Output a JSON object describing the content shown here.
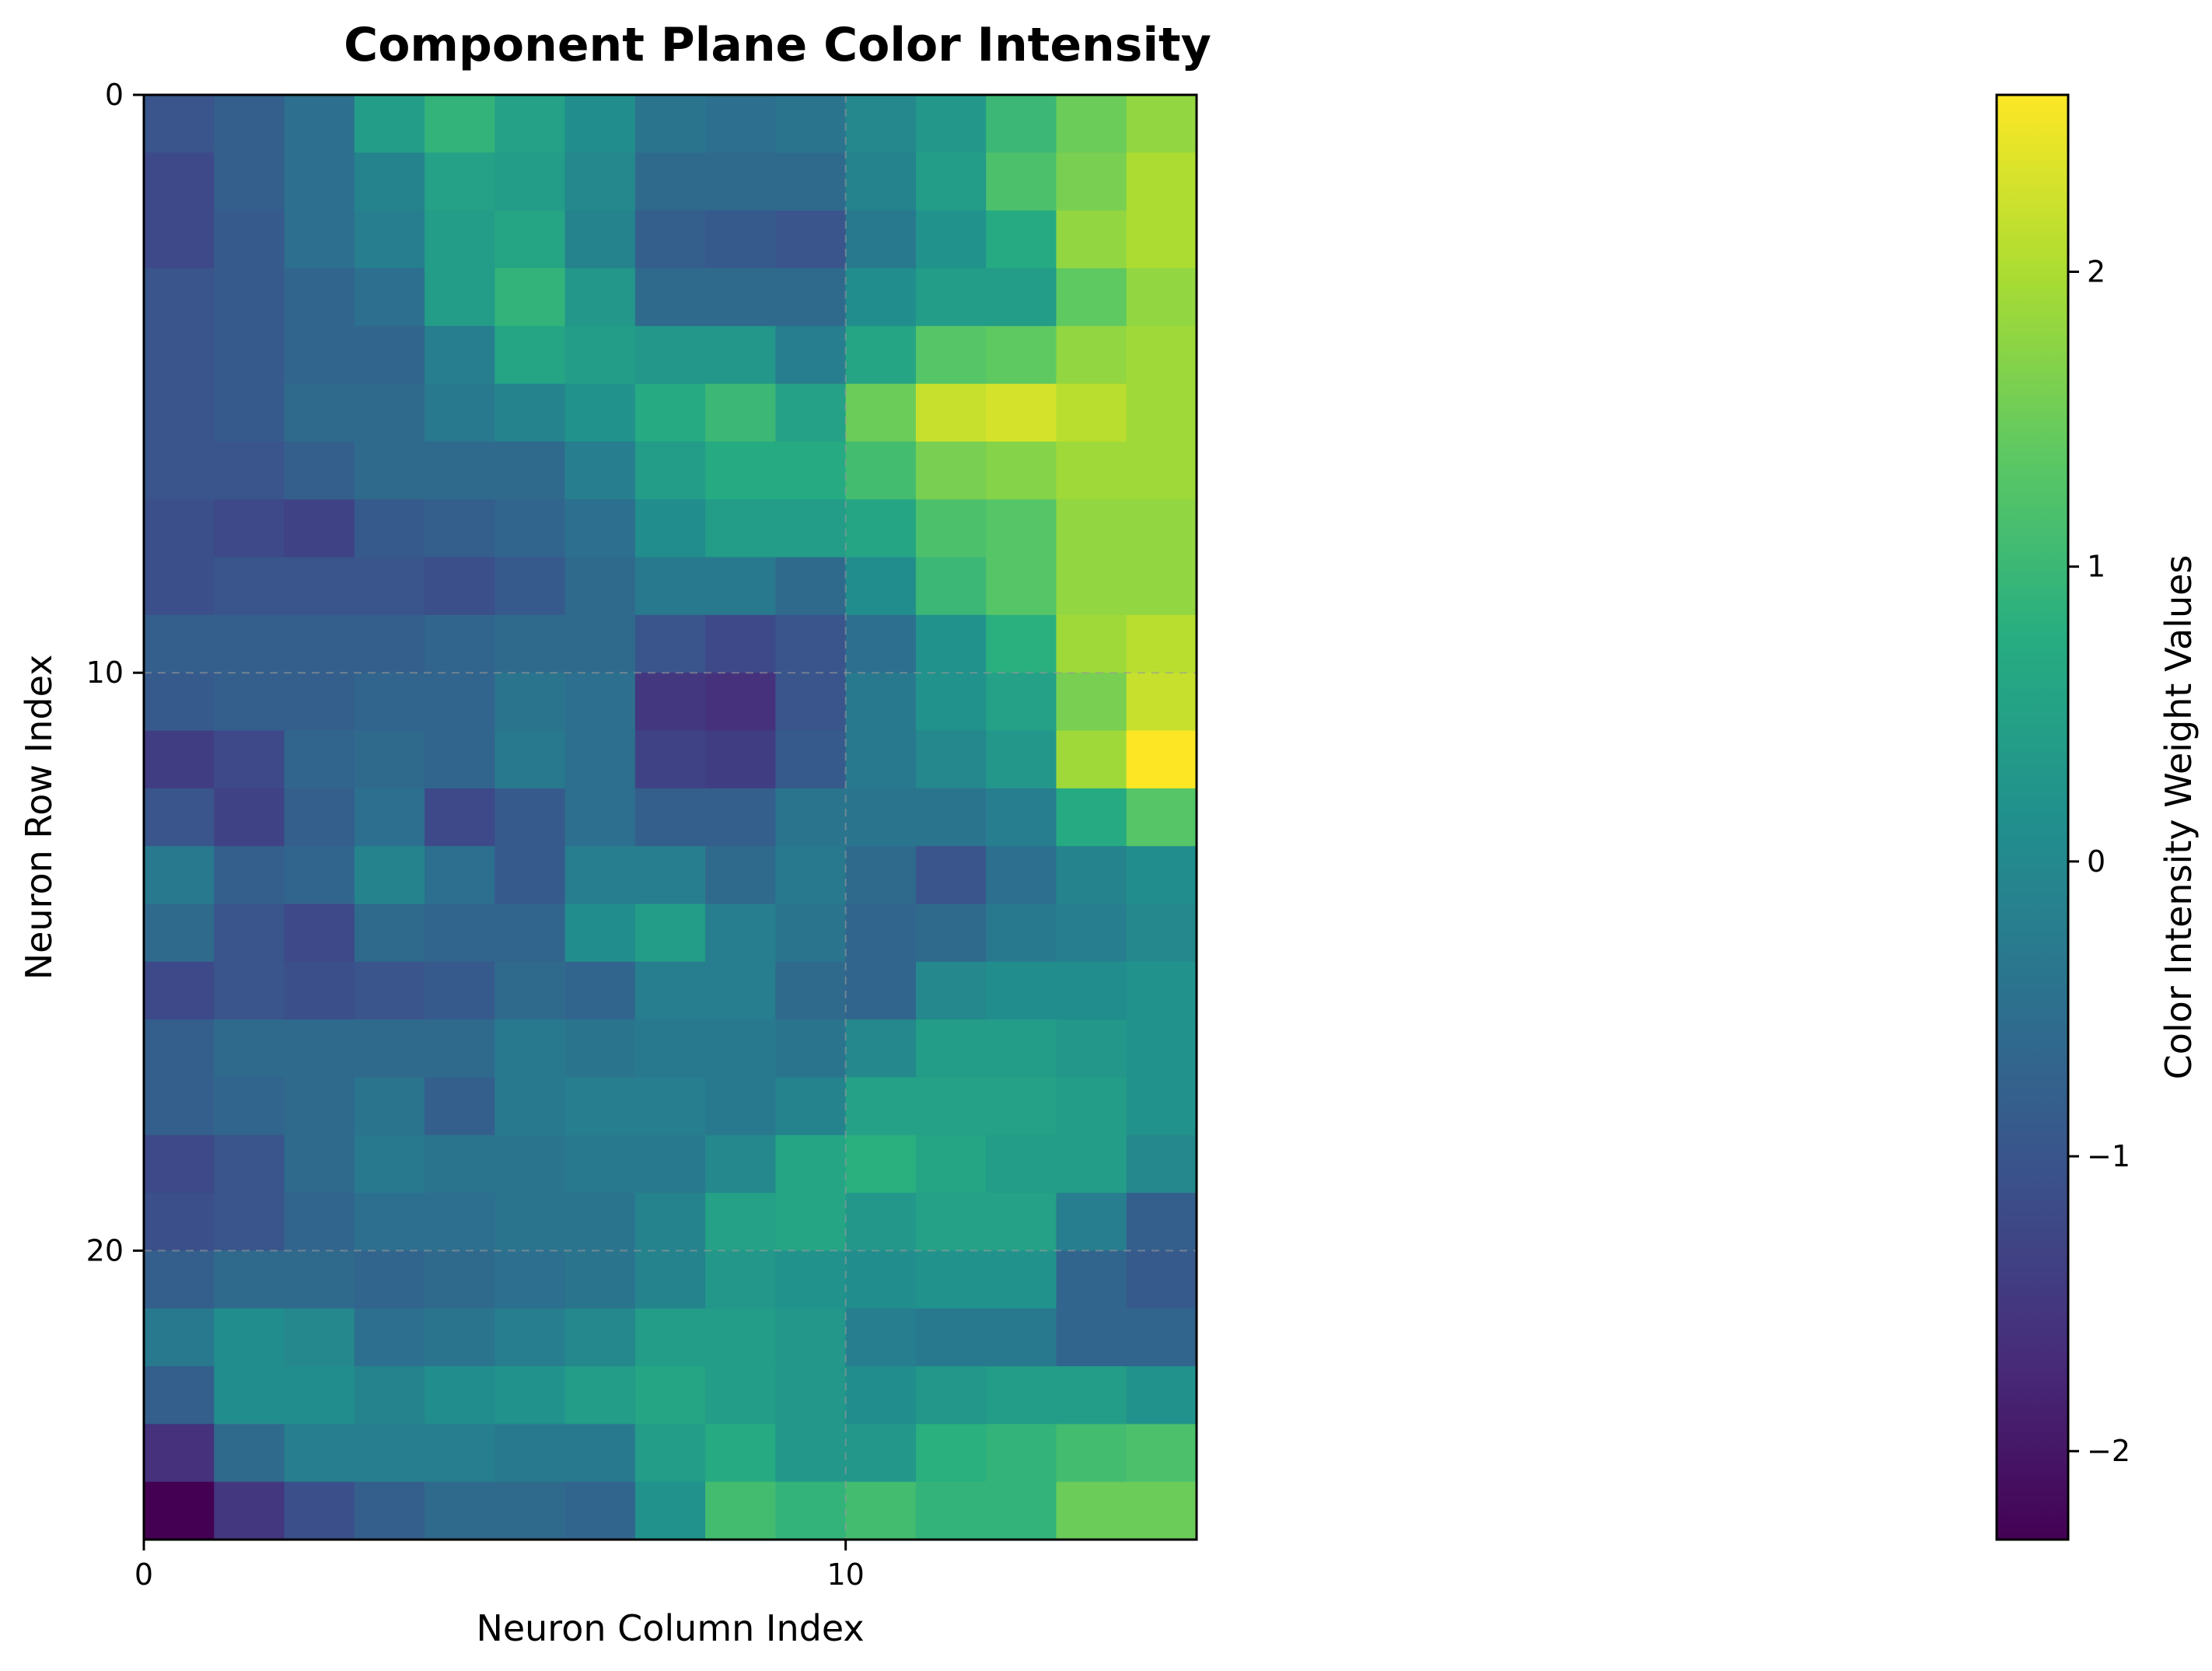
{
  "chart_data": {
    "type": "heatmap",
    "title": "Component Plane Color Intensity",
    "xlabel": "Neuron Column Index",
    "ylabel": "Neuron Row Index",
    "colorbar_label": "Color Intensity Weight Values",
    "colormap": "viridis",
    "xlim": [
      0,
      15
    ],
    "ylim": [
      25,
      0
    ],
    "x_ticks": [
      0,
      10
    ],
    "x_tick_labels": [
      "0",
      "10"
    ],
    "y_ticks": [
      0,
      10,
      20
    ],
    "y_tick_labels": [
      "0",
      "10",
      "20"
    ],
    "vmin": -2.3,
    "vmax": 2.6,
    "colorbar_ticks": [
      -2,
      -1,
      0,
      1,
      2
    ],
    "colorbar_tick_labels": [
      "−2",
      "−1",
      "0",
      "1",
      "2"
    ],
    "grid": true,
    "grid_lines_x": [
      10
    ],
    "grid_lines_y": [
      10,
      20
    ],
    "values": [
      [
        -1.0,
        -0.8,
        -0.5,
        0.4,
        0.9,
        0.5,
        0.1,
        -0.4,
        -0.5,
        -0.4,
        0.0,
        0.3,
        1.0,
        1.5,
        1.8
      ],
      [
        -1.2,
        -0.8,
        -0.5,
        -0.1,
        0.5,
        0.4,
        0.0,
        -0.6,
        -0.6,
        -0.6,
        -0.1,
        0.4,
        1.2,
        1.6,
        2.0
      ],
      [
        -1.2,
        -0.9,
        -0.5,
        -0.2,
        0.4,
        0.6,
        -0.1,
        -0.8,
        -0.9,
        -1.0,
        -0.3,
        0.2,
        0.7,
        1.8,
        2.0
      ],
      [
        -1.0,
        -0.9,
        -0.7,
        -0.5,
        0.4,
        0.9,
        0.3,
        -0.6,
        -0.6,
        -0.6,
        0.1,
        0.4,
        0.4,
        1.4,
        1.8
      ],
      [
        -1.0,
        -0.9,
        -0.7,
        -0.7,
        -0.2,
        0.6,
        0.4,
        0.3,
        0.3,
        -0.2,
        0.6,
        1.3,
        1.4,
        1.8,
        1.9
      ],
      [
        -1.0,
        -0.9,
        -0.6,
        -0.6,
        -0.3,
        -0.1,
        0.2,
        0.7,
        1.0,
        0.5,
        1.5,
        2.2,
        2.3,
        2.1,
        1.9
      ],
      [
        -1.0,
        -1.0,
        -0.8,
        -0.6,
        -0.6,
        -0.6,
        -0.2,
        0.4,
        0.7,
        0.7,
        1.1,
        1.6,
        1.7,
        1.9,
        1.9
      ],
      [
        -1.1,
        -1.2,
        -1.3,
        -0.9,
        -0.8,
        -0.7,
        -0.5,
        0.1,
        0.4,
        0.4,
        0.6,
        1.2,
        1.3,
        1.8,
        1.8
      ],
      [
        -1.1,
        -1.0,
        -1.0,
        -1.0,
        -1.1,
        -0.9,
        -0.6,
        -0.3,
        -0.3,
        -0.6,
        0.1,
        1.0,
        1.3,
        1.8,
        1.8
      ],
      [
        -0.8,
        -0.8,
        -0.8,
        -0.8,
        -0.7,
        -0.6,
        -0.6,
        -1.0,
        -1.2,
        -1.0,
        -0.5,
        0.2,
        0.8,
        1.9,
        2.1
      ],
      [
        -0.9,
        -0.8,
        -0.8,
        -0.7,
        -0.7,
        -0.4,
        -0.5,
        -1.5,
        -1.6,
        -1.0,
        -0.3,
        0.2,
        0.5,
        1.6,
        2.2
      ],
      [
        -1.4,
        -1.2,
        -0.7,
        -0.6,
        -0.7,
        -0.3,
        -0.5,
        -1.3,
        -1.4,
        -0.9,
        -0.3,
        0.0,
        0.3,
        1.9,
        2.6
      ],
      [
        -1.0,
        -1.3,
        -0.8,
        -0.5,
        -1.2,
        -0.9,
        -0.5,
        -0.8,
        -0.8,
        -0.4,
        -0.4,
        -0.4,
        -0.2,
        0.7,
        1.3
      ],
      [
        -0.3,
        -0.8,
        -0.7,
        -0.1,
        -0.5,
        -0.9,
        -0.2,
        -0.2,
        -0.6,
        -0.3,
        -0.6,
        -1.0,
        -0.5,
        -0.1,
        0.1
      ],
      [
        -0.6,
        -1.0,
        -1.2,
        -0.6,
        -0.7,
        -0.7,
        0.1,
        0.4,
        -0.2,
        -0.4,
        -0.7,
        -0.6,
        -0.3,
        -0.2,
        0.0
      ],
      [
        -1.2,
        -1.0,
        -1.1,
        -1.0,
        -0.9,
        -0.6,
        -0.7,
        -0.2,
        -0.2,
        -0.6,
        -0.7,
        0.0,
        0.1,
        0.1,
        0.2
      ],
      [
        -0.8,
        -0.6,
        -0.6,
        -0.6,
        -0.6,
        -0.3,
        -0.4,
        -0.3,
        -0.3,
        -0.4,
        0.0,
        0.4,
        0.4,
        0.3,
        0.2
      ],
      [
        -0.8,
        -0.7,
        -0.6,
        -0.4,
        -0.8,
        -0.3,
        -0.2,
        -0.2,
        -0.3,
        -0.1,
        0.5,
        0.5,
        0.5,
        0.4,
        0.2
      ],
      [
        -1.2,
        -1.0,
        -0.6,
        -0.3,
        -0.4,
        -0.4,
        -0.3,
        -0.3,
        0.0,
        0.6,
        0.8,
        0.6,
        0.4,
        0.4,
        0.0
      ],
      [
        -1.1,
        -1.0,
        -0.7,
        -0.5,
        -0.5,
        -0.4,
        -0.4,
        -0.1,
        0.5,
        0.6,
        0.3,
        0.5,
        0.5,
        -0.2,
        -0.8
      ],
      [
        -0.8,
        -0.6,
        -0.6,
        -0.7,
        -0.6,
        -0.5,
        -0.4,
        -0.1,
        0.3,
        0.2,
        0.1,
        0.2,
        0.2,
        -0.7,
        -0.9
      ],
      [
        -0.3,
        0.1,
        0.0,
        -0.5,
        -0.4,
        -0.2,
        0.0,
        0.4,
        0.4,
        0.3,
        -0.2,
        -0.3,
        -0.3,
        -0.7,
        -0.7
      ],
      [
        -0.8,
        0.1,
        0.1,
        -0.1,
        0.1,
        0.2,
        0.4,
        0.6,
        0.4,
        0.3,
        0.1,
        0.3,
        0.4,
        0.4,
        0.2
      ],
      [
        -1.6,
        -0.6,
        -0.2,
        -0.2,
        -0.2,
        -0.3,
        -0.3,
        0.4,
        0.7,
        0.3,
        0.3,
        0.8,
        0.9,
        1.1,
        1.2
      ],
      [
        -2.3,
        -1.5,
        -1.1,
        -0.8,
        -0.6,
        -0.6,
        -0.7,
        0.2,
        1.1,
        0.9,
        1.1,
        0.9,
        0.9,
        1.5,
        1.5
      ]
    ]
  }
}
